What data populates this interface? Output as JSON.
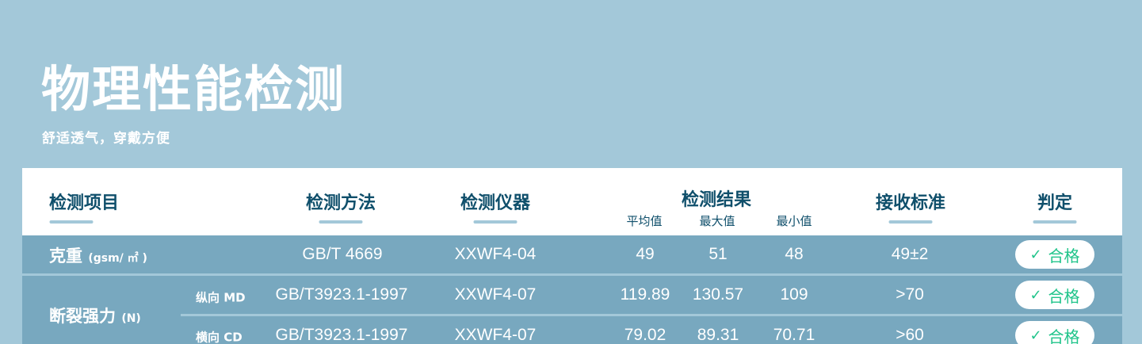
{
  "title": "物理性能检测",
  "subtitle": "舒适透气，穿戴方便",
  "colors": {
    "background": "#a3c8d9",
    "row": "#78a8bf",
    "header_text": "#0f4f6b",
    "pass": "#1fc48a"
  },
  "headers": {
    "item": "检测项目",
    "method": "检测方法",
    "instrument": "检测仪器",
    "result": "检测结果",
    "avg": "平均值",
    "max": "最大值",
    "min": "最小值",
    "standard": "接收标准",
    "judge": "判定"
  },
  "rows": [
    {
      "item": "克重",
      "unit": "(gsm/ ㎡ )",
      "sub": "",
      "method": "GB/T 4669",
      "instrument": "XXWF4-04",
      "avg": "49",
      "max": "51",
      "min": "48",
      "standard": "49±2",
      "judge": "合格"
    },
    {
      "item": "断裂强力",
      "unit": "(N)",
      "sub": "纵向 MD",
      "method": "GB/T3923.1-1997",
      "instrument": "XXWF4-07",
      "avg": "119.89",
      "max": "130.57",
      "min": "109",
      "standard": ">70",
      "judge": "合格"
    },
    {
      "item": "断裂强力",
      "unit": "(N)",
      "sub": "横向 CD",
      "method": "GB/T3923.1-1997",
      "instrument": "XXWF4-07",
      "avg": "79.02",
      "max": "89.31",
      "min": "70.71",
      "standard": ">60",
      "judge": "合格"
    }
  ],
  "icons": {
    "judge": "check-icon"
  }
}
